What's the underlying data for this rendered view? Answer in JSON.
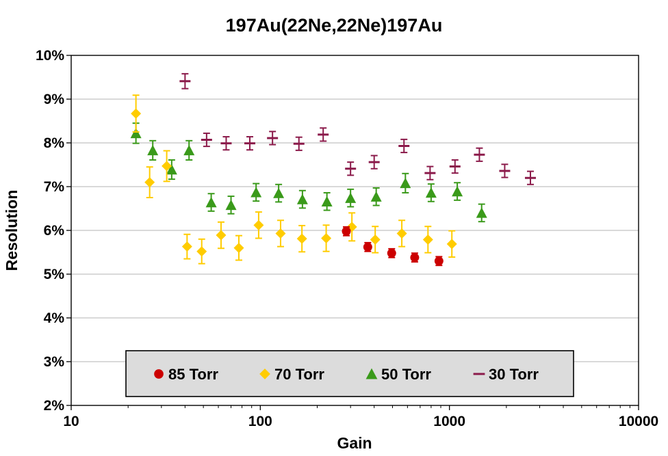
{
  "chart_data": {
    "type": "scatter",
    "title": "197Au(22Ne,22Ne)197Au",
    "xlabel": "Gain",
    "ylabel": "Resolution",
    "x_scale": "log",
    "xlim": [
      10,
      10000
    ],
    "ylim": [
      2,
      10
    ],
    "x_ticks": [
      "10",
      "100",
      "1000",
      "10000"
    ],
    "y_ticks": [
      "2%",
      "3%",
      "4%",
      "5%",
      "6%",
      "7%",
      "8%",
      "9%",
      "10%"
    ],
    "grid": "horizontal",
    "legend_position": "bottom-center",
    "series": [
      {
        "name": "85 Torr",
        "marker": "circle",
        "color": "#cc0000",
        "x": [
          285,
          370,
          495,
          655,
          880
        ],
        "y": [
          5.98,
          5.62,
          5.48,
          5.38,
          5.3
        ],
        "err": [
          0.1,
          0.1,
          0.1,
          0.1,
          0.1
        ]
      },
      {
        "name": "70 Torr",
        "marker": "diamond",
        "color": "#ffcc00",
        "x": [
          22,
          26,
          32,
          41,
          49,
          62,
          77,
          98,
          128,
          166,
          223,
          305,
          405,
          560,
          770,
          1030
        ],
        "y": [
          8.67,
          7.1,
          7.47,
          5.63,
          5.52,
          5.89,
          5.6,
          6.12,
          5.93,
          5.81,
          5.82,
          6.08,
          5.79,
          5.93,
          5.79,
          5.69
        ],
        "err": [
          0.42,
          0.35,
          0.35,
          0.28,
          0.28,
          0.3,
          0.28,
          0.3,
          0.3,
          0.3,
          0.3,
          0.32,
          0.3,
          0.3,
          0.3,
          0.3
        ]
      },
      {
        "name": "50 Torr",
        "marker": "triangle",
        "color": "#3a9a1a",
        "x": [
          22,
          27,
          34,
          42,
          55,
          70,
          95,
          125,
          167,
          225,
          300,
          410,
          585,
          800,
          1100,
          1480
        ],
        "y": [
          8.22,
          7.83,
          7.39,
          7.83,
          6.64,
          6.58,
          6.87,
          6.85,
          6.71,
          6.66,
          6.74,
          6.77,
          7.08,
          6.86,
          6.89,
          6.4
        ],
        "err": [
          0.23,
          0.22,
          0.22,
          0.22,
          0.2,
          0.2,
          0.2,
          0.2,
          0.2,
          0.2,
          0.2,
          0.2,
          0.22,
          0.2,
          0.2,
          0.2
        ]
      },
      {
        "name": "30 Torr",
        "marker": "dash",
        "color": "#8b1a4a",
        "x": [
          40,
          52,
          66,
          88,
          116,
          160,
          215,
          300,
          400,
          575,
          790,
          1070,
          1440,
          1960,
          2680
        ],
        "y": [
          9.41,
          8.07,
          7.99,
          7.99,
          8.11,
          7.98,
          8.19,
          7.41,
          7.56,
          7.93,
          7.31,
          7.46,
          7.73,
          7.36,
          7.2
        ],
        "err": [
          0.17,
          0.15,
          0.15,
          0.15,
          0.15,
          0.15,
          0.15,
          0.15,
          0.15,
          0.15,
          0.15,
          0.15,
          0.15,
          0.15,
          0.15
        ]
      }
    ]
  }
}
